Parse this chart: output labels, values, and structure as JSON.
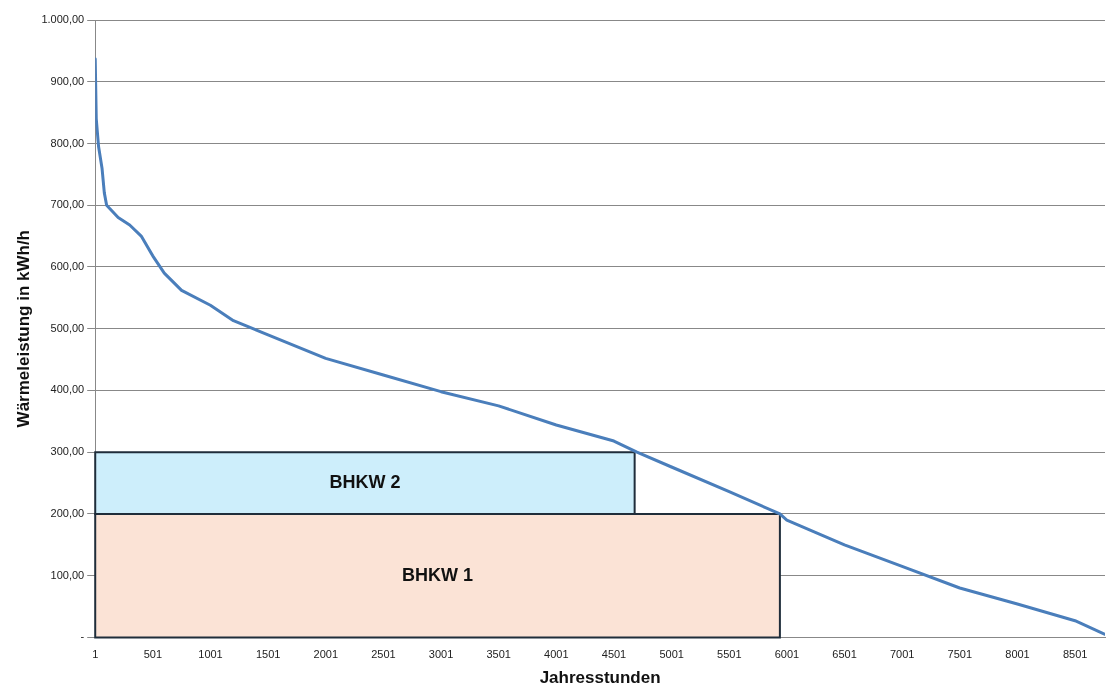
{
  "chart_data": {
    "type": "line",
    "xlabel": "Jahresstunden",
    "ylabel": "Wärmeleistung in kWh/h",
    "xlim": [
      1,
      8760
    ],
    "xticks": [
      1,
      501,
      1001,
      1501,
      2001,
      2501,
      3001,
      3501,
      4001,
      4501,
      5001,
      5501,
      6001,
      6501,
      7001,
      7501,
      8001,
      8501
    ],
    "ylim": [
      0,
      1000
    ],
    "yticks": [
      {
        "value": 0,
        "label": "-"
      },
      {
        "value": 100,
        "label": "100,00"
      },
      {
        "value": 200,
        "label": "200,00"
      },
      {
        "value": 300,
        "label": "300,00"
      },
      {
        "value": 400,
        "label": "400,00"
      },
      {
        "value": 500,
        "label": "500,00"
      },
      {
        "value": 600,
        "label": "600,00"
      },
      {
        "value": 700,
        "label": "700,00"
      },
      {
        "value": 800,
        "label": "800,00"
      },
      {
        "value": 900,
        "label": "900,00"
      },
      {
        "value": 1000,
        "label": "1.000,00"
      }
    ],
    "grid": "y",
    "stacked": true,
    "marker": "none",
    "line_style": "solid",
    "series": [
      {
        "type": "area",
        "name": "BHKW 1",
        "color": "#fbe3d6",
        "x": [
          1,
          5940
        ],
        "values": [
          200,
          200
        ]
      },
      {
        "type": "area",
        "name": "BHKW 2",
        "color": "#cdeefb",
        "x": [
          1,
          4680
        ],
        "values": [
          100,
          100
        ]
      },
      {
        "type": "line",
        "color": "#4a7ebb",
        "x": [
          1,
          10,
          30,
          60,
          80,
          100,
          200,
          300,
          400,
          500,
          600,
          750,
          1000,
          1200,
          1500,
          2000,
          2500,
          3000,
          3500,
          4000,
          4500,
          4700,
          5000,
          5500,
          5940,
          6000,
          6500,
          7000,
          7500,
          8000,
          8500,
          8760
        ],
        "values": [
          937,
          840,
          795,
          760,
          720,
          700,
          680,
          668,
          650,
          618,
          590,
          562,
          538,
          513,
          490,
          452,
          425,
          398,
          375,
          344,
          318,
          300,
          276,
          236,
          200,
          190,
          150,
          115,
          80,
          54,
          27,
          5
        ]
      }
    ]
  }
}
